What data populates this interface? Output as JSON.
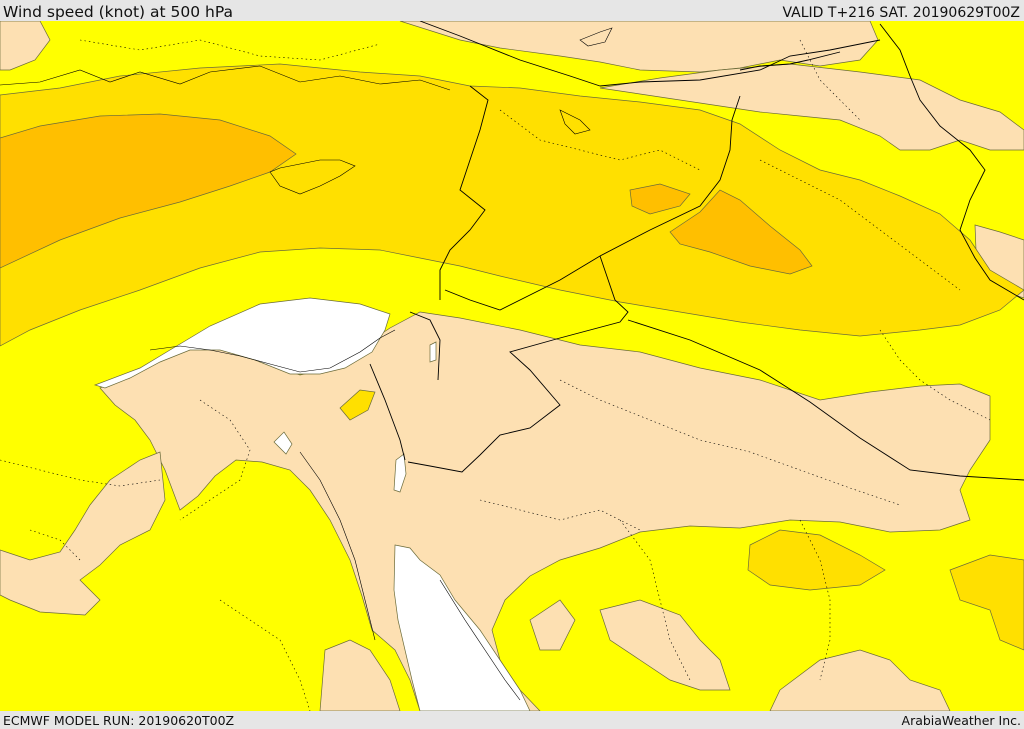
{
  "header": {
    "title": "Wind speed (knot) at 500 hPa",
    "valid_time": "VALID T+216 SAT. 20190629T00Z"
  },
  "footer": {
    "model_run": "ECMWF MODEL RUN: 20190620T00Z",
    "credit": "ArabiaWeather Inc."
  },
  "map": {
    "variable": "wind speed at 500 hPa",
    "region": "Eastern Mediterranean / Levant / Arabian Peninsula",
    "contour_fill_colors": {
      "no_data_background": "#ffffff",
      "lowest_band": "#fde0b2",
      "low_band": "#ffff00",
      "medium_band": "#ffe000",
      "high_band": "#ffbf00",
      "highest_band": "#ffaa00"
    },
    "border_color": "#000000",
    "contour_line_color": "#5a5a2a"
  }
}
